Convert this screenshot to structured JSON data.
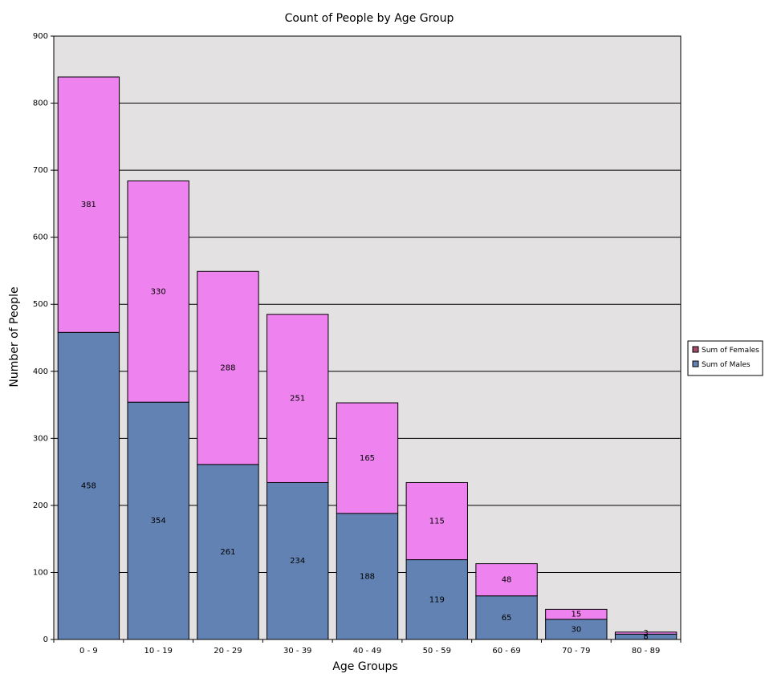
{
  "chart_data": {
    "type": "bar",
    "stacked": true,
    "title": "Count of People by Age Group",
    "xlabel": "Age Groups",
    "ylabel": "Number of People",
    "ylim": [
      0,
      900
    ],
    "yticks": [
      0,
      100,
      200,
      300,
      400,
      500,
      600,
      700,
      800,
      900
    ],
    "grid": true,
    "legend_position": "right",
    "categories": [
      "0 - 9",
      "10 - 19",
      "20 - 29",
      "30 - 39",
      "40 - 49",
      "50 - 59",
      "60 - 69",
      "70 - 79",
      "80 - 89"
    ],
    "series": [
      {
        "name": "Sum of Males",
        "color": "#6182b2",
        "values": [
          458,
          354,
          261,
          234,
          188,
          119,
          65,
          30,
          8
        ]
      },
      {
        "name": "Sum of Females",
        "color": "#ee82ee",
        "values": [
          381,
          330,
          288,
          251,
          165,
          115,
          48,
          15,
          3
        ]
      }
    ],
    "legend_entries": [
      {
        "name": "Sum of Females",
        "color": "#a34c6a"
      },
      {
        "name": "Sum of Males",
        "color": "#6182b2"
      }
    ],
    "plot_background": "#e3e1e2"
  }
}
